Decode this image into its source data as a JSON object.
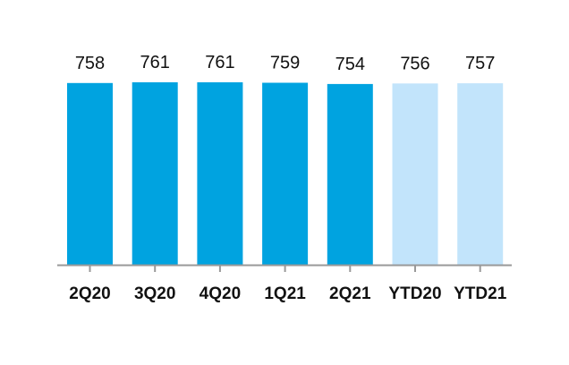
{
  "chart_data": {
    "type": "bar",
    "title": "",
    "xlabel": "",
    "ylabel": "",
    "categories": [
      "2Q20",
      "3Q20",
      "4Q20",
      "1Q21",
      "2Q21",
      "YTD20",
      "YTD21"
    ],
    "values": [
      758,
      761,
      761,
      759,
      754,
      756,
      757
    ],
    "data_labels": [
      "758",
      "761",
      "761",
      "759",
      "754",
      "756",
      "757"
    ],
    "bar_colors": [
      "#00a3e0",
      "#00a3e0",
      "#00a3e0",
      "#00a3e0",
      "#00a3e0",
      "#c2e4fb",
      "#c2e4fb"
    ],
    "axis_color": "#999999",
    "ylim": [
      0,
      761
    ],
    "grid": false,
    "legend": "none"
  }
}
